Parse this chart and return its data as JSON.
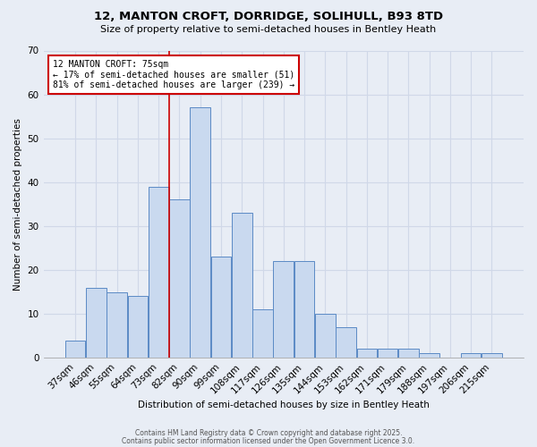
{
  "title1": "12, MANTON CROFT, DORRIDGE, SOLIHULL, B93 8TD",
  "title2": "Size of property relative to semi-detached houses in Bentley Heath",
  "xlabel": "Distribution of semi-detached houses by size in Bentley Heath",
  "ylabel": "Number of semi-detached properties",
  "categories": [
    "37sqm",
    "46sqm",
    "55sqm",
    "64sqm",
    "73sqm",
    "82sqm",
    "90sqm",
    "99sqm",
    "108sqm",
    "117sqm",
    "126sqm",
    "135sqm",
    "144sqm",
    "153sqm",
    "162sqm",
    "171sqm",
    "179sqm",
    "188sqm",
    "197sqm",
    "206sqm",
    "215sqm"
  ],
  "values": [
    4,
    16,
    15,
    14,
    39,
    36,
    57,
    23,
    33,
    11,
    22,
    22,
    10,
    7,
    2,
    2,
    2,
    1,
    0,
    1,
    1
  ],
  "bar_color": "#c9d9ef",
  "bar_edge_color": "#5b8ac5",
  "red_line_bin": 5,
  "red_line_color": "#cc0000",
  "annotation_box_color": "#ffffff",
  "annotation_box_edge": "#cc0000",
  "annotation_line1": "12 MANTON CROFT: 75sqm",
  "annotation_line2": "← 17% of semi-detached houses are smaller (51)",
  "annotation_line3": "81% of semi-detached houses are larger (239) →",
  "grid_color": "#d0d8e8",
  "bg_color": "#e8edf5",
  "ylim": [
    0,
    70
  ],
  "yticks": [
    0,
    10,
    20,
    30,
    40,
    50,
    60,
    70
  ],
  "footer1": "Contains HM Land Registry data © Crown copyright and database right 2025.",
  "footer2": "Contains public sector information licensed under the Open Government Licence 3.0."
}
